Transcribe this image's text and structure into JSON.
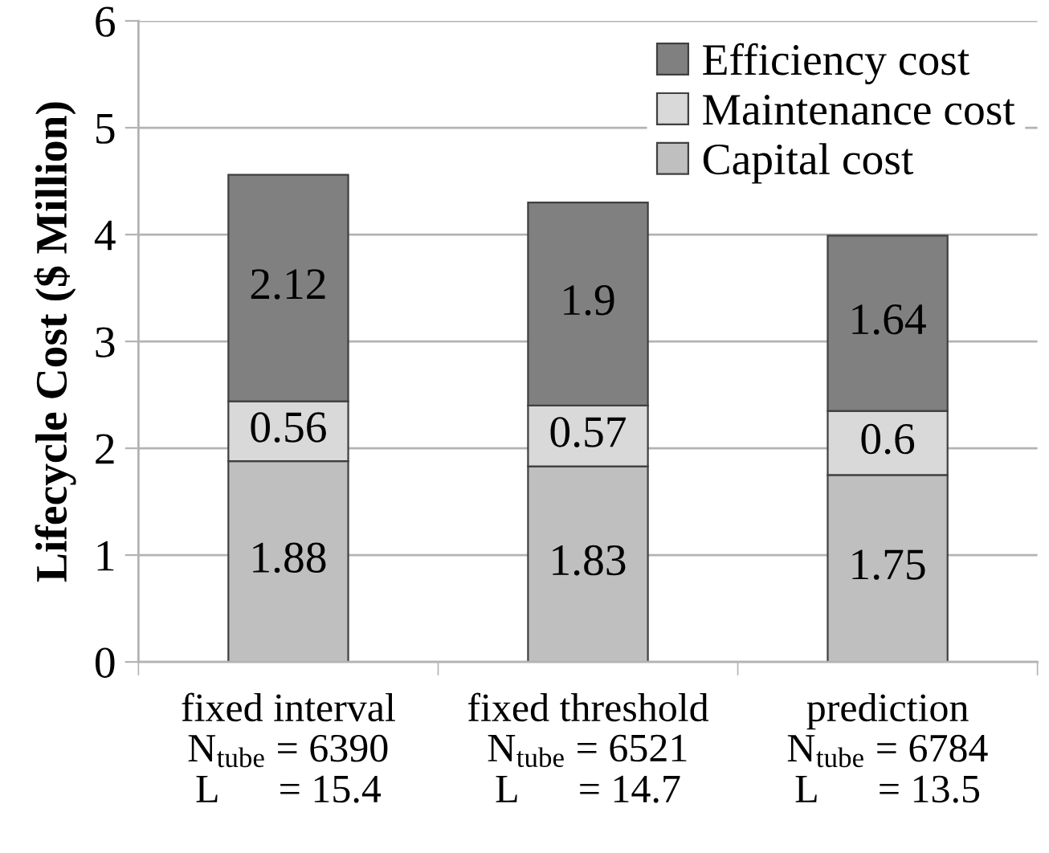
{
  "chart_data": {
    "type": "bar",
    "stacked": true,
    "categories": [
      "fixed interval\nN$_{tube}$ = 6390\nL      = 15.4",
      "fixed threshold\nN$_{tube}$ = 6521\nL      = 14.7",
      "prediction\nN$_{tube}$ = 6784\nL      = 13.5"
    ],
    "ylabel": "Lifecycle Cost ($ Million)",
    "series": [
      {
        "name": "Capital cost",
        "color": "#bfbfbf",
        "values": [
          1.88,
          1.83,
          1.75
        ]
      },
      {
        "name": "Maintenance cost",
        "color": "#d9d9d9",
        "values": [
          0.56,
          0.57,
          0.6
        ]
      },
      {
        "name": "Efficiency cost",
        "color": "#808080",
        "values": [
          2.12,
          1.9,
          1.64
        ]
      }
    ],
    "ylim": [
      0,
      6
    ],
    "yticks": [
      0,
      1,
      2,
      3,
      4,
      5,
      6
    ],
    "grid": "y",
    "legend": "top right",
    "data_labels": true
  }
}
